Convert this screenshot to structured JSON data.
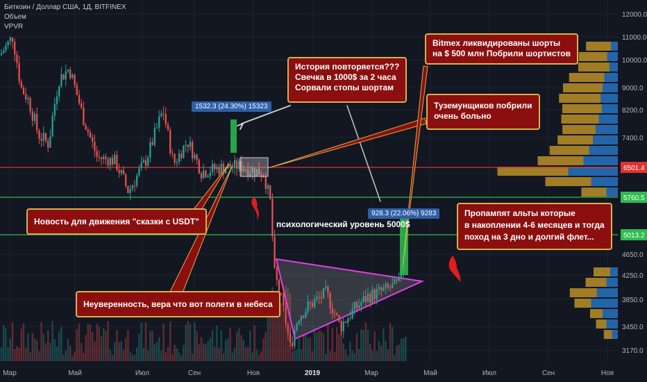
{
  "header": {
    "symbol": "Биткоин / Доллар США, 1Д, BITFINEX",
    "volume": "Объем",
    "vpvr": "VPVR"
  },
  "chart_data": {
    "type": "candlestick",
    "y_ticks": [
      "12000.0",
      "11000.0",
      "10000.0",
      "9000.0",
      "8200.0",
      "7400.0",
      "6501.4",
      "5760.5",
      "5013.2",
      "4650.0",
      "4250.0",
      "3850.0",
      "3450.0",
      "3170.0"
    ],
    "x_ticks": [
      "Мар",
      "Май",
      "Июл",
      "Сен",
      "Ноя",
      "2019",
      "Мар",
      "Май",
      "Июл",
      "Сен",
      "Ноя"
    ],
    "price_labels": [
      {
        "value": "6501.4",
        "color": "#e03131"
      },
      {
        "value": "5760.5",
        "color": "#2ebd4f"
      },
      {
        "value": "5013.2",
        "color": "#2ebd4f"
      }
    ],
    "measurements": [
      {
        "text": "1532.3 (24.30%) 15323"
      },
      {
        "text": "928.3 (22.06%) 9283"
      }
    ],
    "levels": [
      {
        "name": "red-level",
        "value": 6501.4,
        "color": "#e03131"
      },
      {
        "name": "green-level-1",
        "value": 5760.5,
        "color": "#2ebd4f"
      },
      {
        "name": "green-level-2",
        "value": 5013.2,
        "color": "#2ebd4f"
      }
    ]
  },
  "annotations": {
    "history": "История повторяется???\nСвечка в 1000$ за 2 часа\nСорвали стопы шортам",
    "bitmex": "Bitmex ликвидированы шорты\nна $ 500 млн Побрили шортистов",
    "tuzem": "Туземунщиков побрили\nочень больно",
    "usdt": "Новость для движения \"сказки с USDT\"",
    "uncertain": "Неуверенность, вера что вот полети в небеса",
    "alts": "Пропампят альты которые\nв накоплении 4-6 месяцев и тогда\nпоход на 3 дно и долгий флет...",
    "psych": "психологический уровень 5000$"
  }
}
